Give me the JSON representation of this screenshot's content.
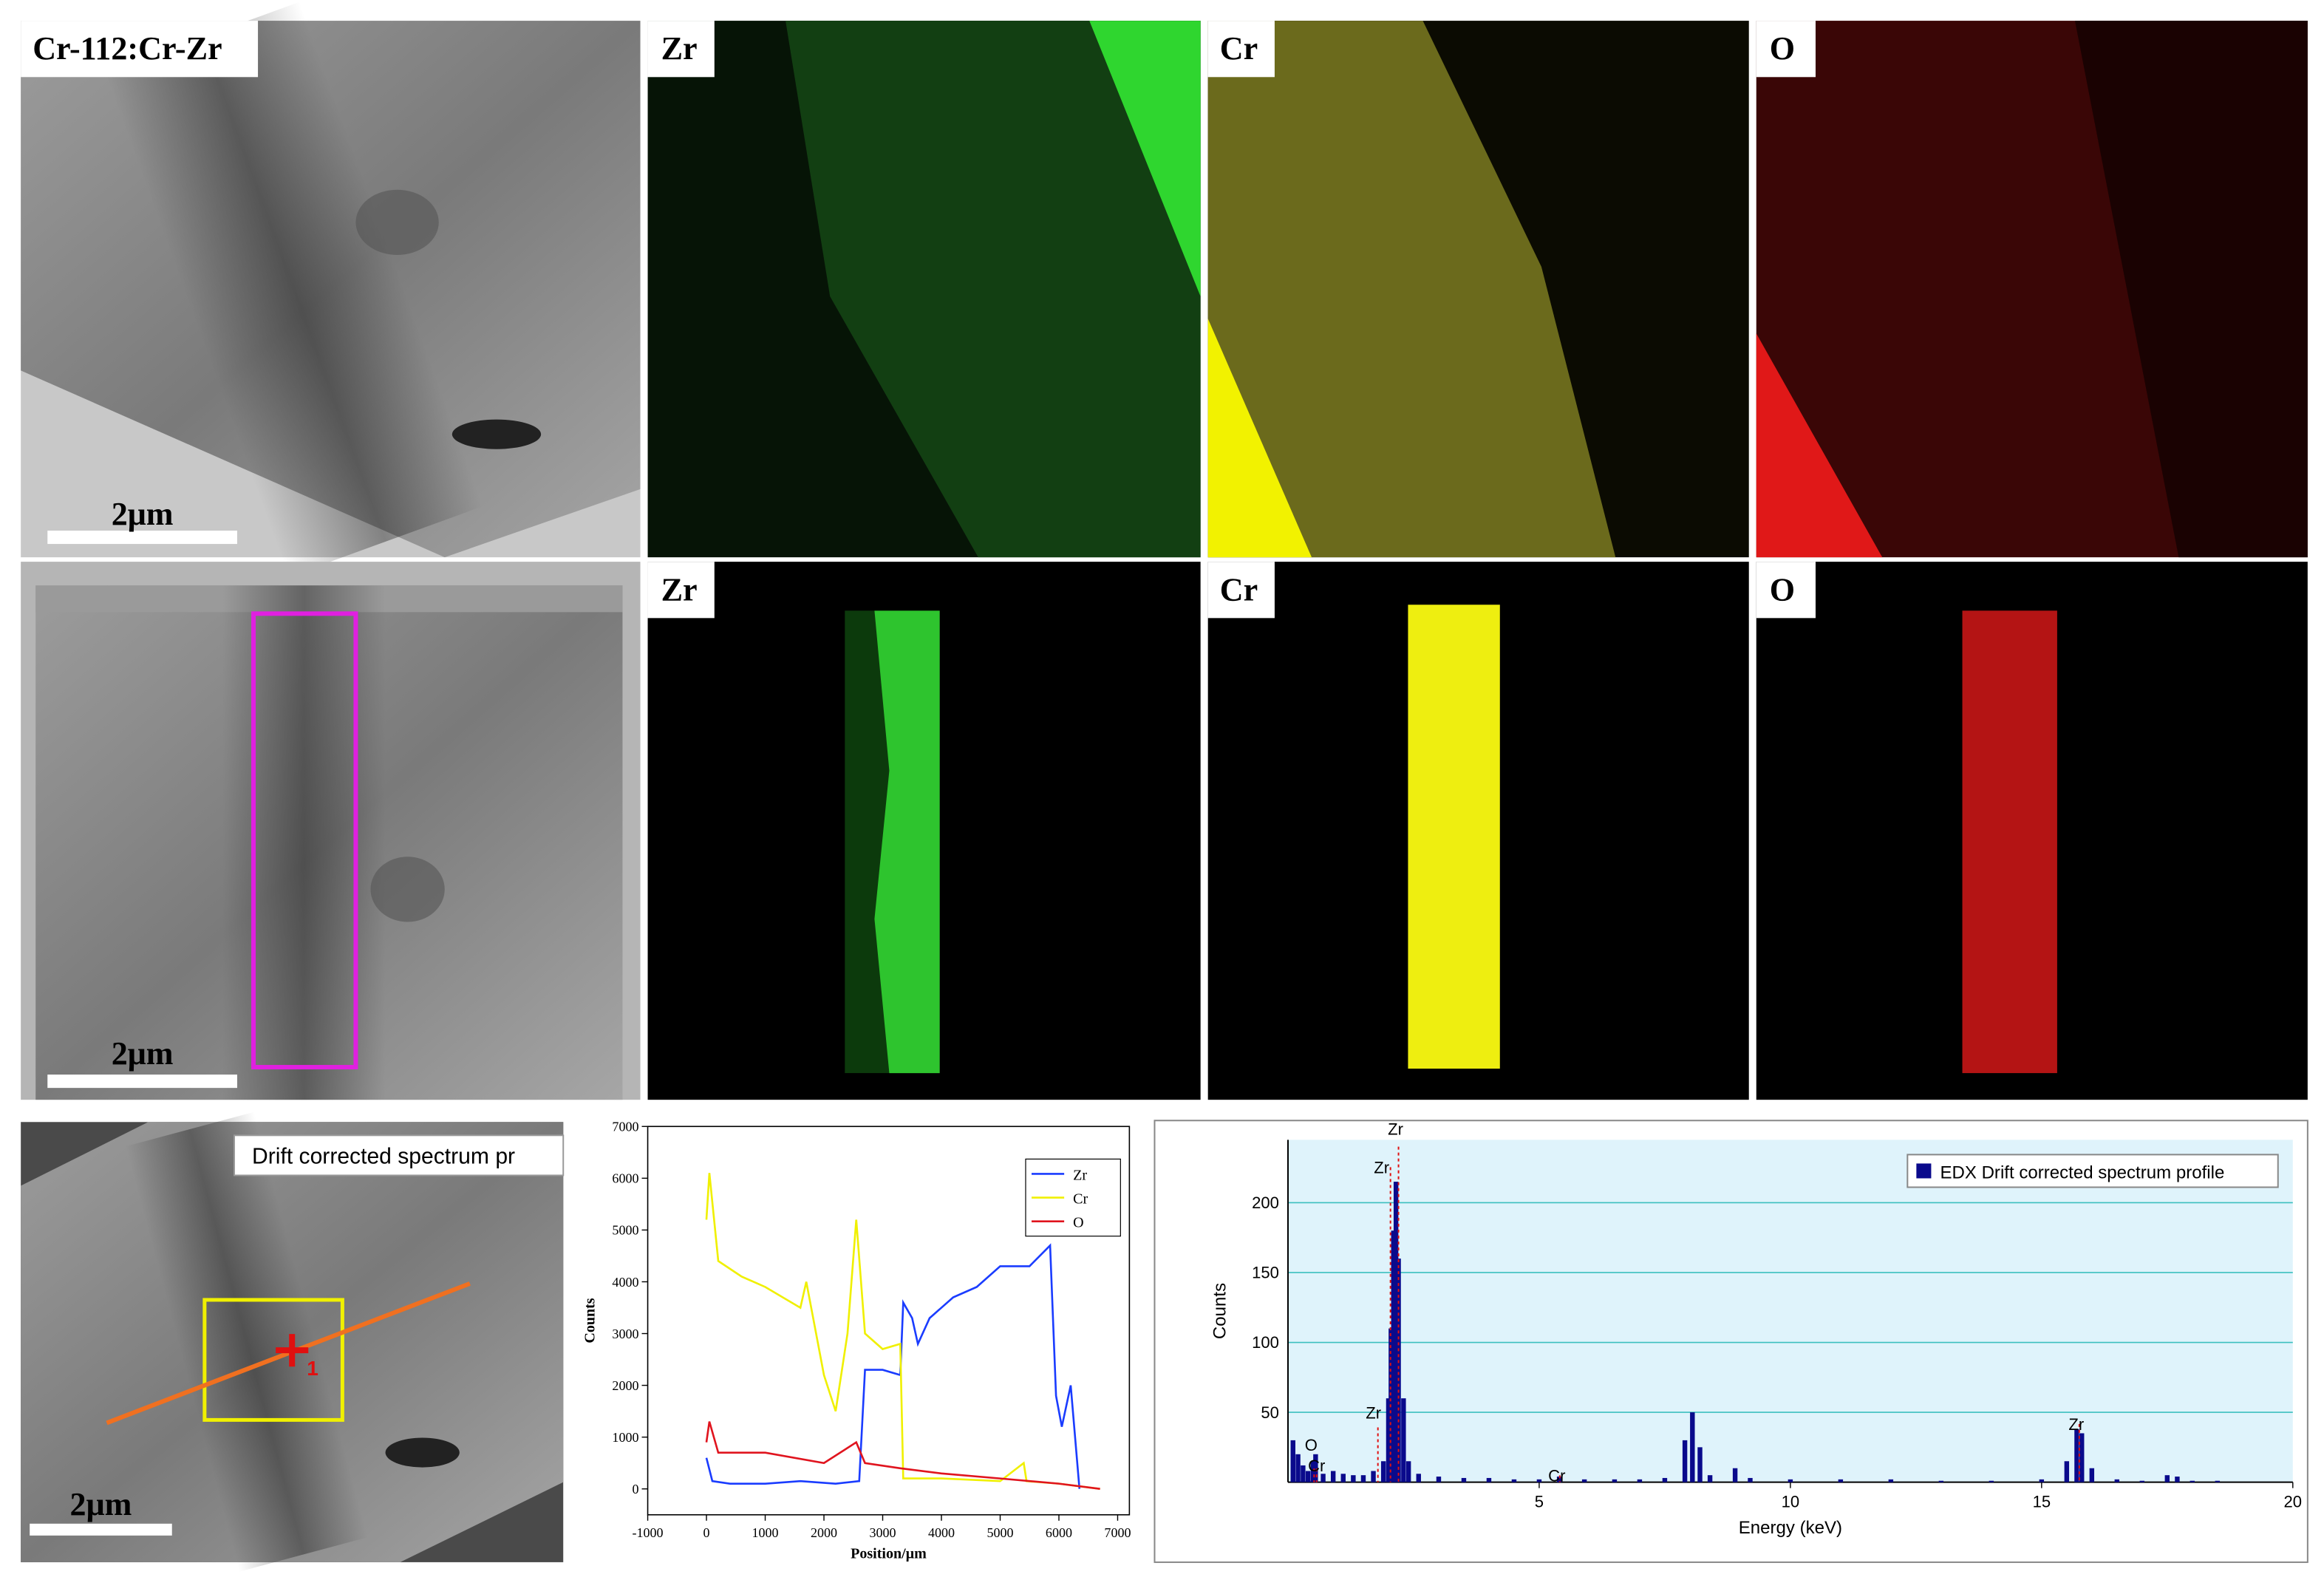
{
  "panels": [
    {
      "label": "Cr-112:Cr-Zr",
      "scale_bar": "2μm"
    },
    {
      "label": "Zr"
    },
    {
      "label": "Cr"
    },
    {
      "label": "O"
    },
    {
      "scale_bar": "2μm"
    },
    {
      "label": "Zr"
    },
    {
      "label": "Cr"
    },
    {
      "label": "O"
    },
    {
      "scale_bar": "2μm",
      "caption": "Drift corrected spectrum pr",
      "marker": "1"
    }
  ],
  "chart_data": [
    {
      "type": "line",
      "xlabel": "Position/μm",
      "ylabel": "Counts",
      "xlim": [
        -1000,
        7200
      ],
      "ylim": [
        -500,
        7000
      ],
      "xticks": [
        -1000,
        0,
        1000,
        2000,
        3000,
        4000,
        5000,
        6000,
        7000
      ],
      "yticks": [
        0,
        1000,
        2000,
        3000,
        4000,
        5000,
        6000,
        7000
      ],
      "legend": "upper right",
      "series": [
        {
          "name": "Zr",
          "color": "#1a3cff",
          "x": [
            0,
            100,
            400,
            1000,
            1600,
            2200,
            2600,
            2700,
            3000,
            3300,
            3350,
            3500,
            3600,
            3800,
            4200,
            4600,
            5000,
            5500,
            5850,
            5950,
            6050,
            6200,
            6350
          ],
          "values": [
            600,
            150,
            100,
            100,
            150,
            100,
            150,
            2300,
            2300,
            2200,
            3600,
            3300,
            2800,
            3300,
            3700,
            3900,
            4300,
            4300,
            4700,
            1800,
            1200,
            2000,
            0
          ]
        },
        {
          "name": "Cr",
          "color": "#f0f000",
          "x": [
            0,
            50,
            200,
            600,
            1000,
            1600,
            1700,
            2000,
            2200,
            2400,
            2550,
            2700,
            3000,
            3300,
            3350,
            4000,
            5000,
            5400,
            5450,
            6000,
            6700
          ],
          "values": [
            5200,
            6100,
            4400,
            4100,
            3900,
            3500,
            4000,
            2200,
            1500,
            3000,
            5200,
            3000,
            2700,
            2800,
            200,
            200,
            150,
            500,
            150,
            100,
            0
          ]
        },
        {
          "name": "O",
          "color": "#e0141e",
          "x": [
            0,
            50,
            200,
            1000,
            2000,
            2550,
            2700,
            3300,
            4000,
            5000,
            6000,
            6700
          ],
          "values": [
            900,
            1300,
            700,
            700,
            500,
            900,
            500,
            400,
            300,
            200,
            100,
            0
          ]
        }
      ]
    },
    {
      "type": "bar",
      "xlabel": "Energy (keV)",
      "ylabel": "Counts",
      "xlim": [
        0,
        20
      ],
      "ylim": [
        0,
        245
      ],
      "xticks": [
        5,
        10,
        15,
        20
      ],
      "yticks": [
        50,
        100,
        150,
        200
      ],
      "grid": true,
      "legend": "upper right",
      "series": [
        {
          "name": "EDX Drift corrected spectrum profile",
          "color": "#0a0a8c",
          "x": [
            0.1,
            0.2,
            0.3,
            0.4,
            0.5,
            0.55,
            0.7,
            0.9,
            1.1,
            1.3,
            1.5,
            1.7,
            1.9,
            2.0,
            2.05,
            2.1,
            2.15,
            2.2,
            2.3,
            2.4,
            2.6,
            3,
            3.5,
            4,
            4.5,
            5,
            5.4,
            5.9,
            6.5,
            7,
            7.5,
            7.9,
            8.05,
            8.2,
            8.4,
            8.9,
            9.2,
            10,
            11,
            12,
            13,
            14,
            15,
            15.5,
            15.7,
            15.8,
            16,
            16.5,
            17,
            17.5,
            17.7,
            18,
            18.5
          ],
          "values": [
            30,
            20,
            12,
            8,
            15,
            20,
            6,
            8,
            6,
            5,
            5,
            8,
            15,
            60,
            110,
            180,
            215,
            160,
            60,
            15,
            6,
            4,
            3,
            3,
            2,
            2,
            4,
            2,
            2,
            2,
            3,
            30,
            50,
            25,
            5,
            10,
            3,
            2,
            2,
            2,
            1,
            1,
            2,
            15,
            38,
            35,
            10,
            2,
            1,
            5,
            4,
            1,
            1
          ]
        }
      ],
      "peaks": [
        {
          "label": "O",
          "x": 0.52
        },
        {
          "label": "Cr",
          "x": 0.57
        },
        {
          "label": "Zr",
          "x": 1.79
        },
        {
          "label": "Zr",
          "x": 2.04
        },
        {
          "label": "Zr",
          "x": 2.2
        },
        {
          "label": "Cr",
          "x": 5.41
        },
        {
          "label": "Zr",
          "x": 15.75
        }
      ]
    }
  ]
}
